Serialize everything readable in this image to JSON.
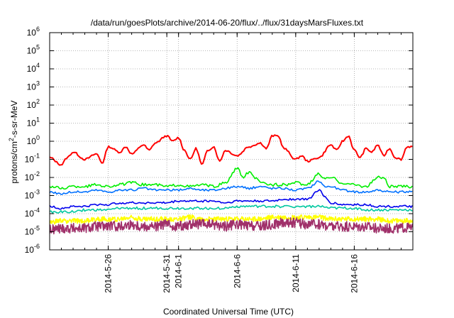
{
  "chart_data": {
    "type": "line",
    "title": "/data/run/goesPlots/archive/2014-06-20/flux/../flux/31daysMarsFluxes.txt",
    "xlabel": "Coordinated Universal Time (UTC)",
    "ylabel_parts": [
      "protons/cm",
      "2",
      "-s-sr-MeV"
    ],
    "y_scale": "log",
    "ylim_exp": [
      -6,
      6
    ],
    "y_tick_exponents": [
      -6,
      -5,
      -4,
      -3,
      -2,
      -1,
      0,
      1,
      2,
      3,
      4,
      5,
      6
    ],
    "y_tick_base": "10",
    "x_range": [
      "2014-05-21",
      "2014-06-21"
    ],
    "x_ticks": [
      "2014-5-26",
      "2014-5-31",
      "2014-6-1",
      "2014-6-6",
      "2014-6-11",
      "2014-6-16"
    ],
    "grid": true,
    "series": [
      {
        "color": "#ff0000",
        "exp": [
          [
            0,
            -0.9
          ],
          [
            1,
            -1.3
          ],
          [
            1.5,
            -0.9
          ],
          [
            2,
            -0.6
          ],
          [
            3,
            -1.0
          ],
          [
            4,
            -0.7
          ],
          [
            4.5,
            -1.2
          ],
          [
            5,
            -0.3
          ],
          [
            6,
            -0.6
          ],
          [
            6.5,
            -0.3
          ],
          [
            7,
            -0.7
          ],
          [
            8,
            -0.2
          ],
          [
            8.5,
            -0.5
          ],
          [
            9,
            -0.1
          ],
          [
            10,
            0.3
          ],
          [
            10.5,
            0.0
          ],
          [
            11,
            0.2
          ],
          [
            11.5,
            -0.5
          ],
          [
            12,
            -1.0
          ],
          [
            12.5,
            -0.4
          ],
          [
            13,
            -1.3
          ],
          [
            13.5,
            -0.5
          ],
          [
            14,
            -0.3
          ],
          [
            14.5,
            -1.1
          ],
          [
            15,
            -0.5
          ],
          [
            16,
            -0.8
          ],
          [
            17,
            -0.3
          ],
          [
            18,
            -0.1
          ],
          [
            18.5,
            -0.4
          ],
          [
            19,
            0.3
          ],
          [
            19.5,
            0.3
          ],
          [
            20,
            -0.4
          ],
          [
            21,
            -1.0
          ],
          [
            21.5,
            -0.8
          ],
          [
            22,
            -1.1
          ],
          [
            23,
            -0.9
          ],
          [
            24,
            -0.2
          ],
          [
            24.5,
            -0.5
          ],
          [
            25,
            0.0
          ],
          [
            25.5,
            0.3
          ],
          [
            26,
            -0.5
          ],
          [
            26.5,
            -0.9
          ],
          [
            27,
            -0.4
          ],
          [
            27.5,
            -0.6
          ],
          [
            28,
            -0.2
          ],
          [
            28.5,
            -0.8
          ],
          [
            29,
            -0.4
          ],
          [
            29.5,
            -0.9
          ],
          [
            30,
            -1.0
          ],
          [
            30.5,
            -0.3
          ]
        ]
      },
      {
        "color": "#00ee00",
        "exp": [
          [
            0,
            -2.5
          ],
          [
            1,
            -2.6
          ],
          [
            2,
            -2.5
          ],
          [
            3,
            -2.5
          ],
          [
            4,
            -2.4
          ],
          [
            5,
            -2.5
          ],
          [
            6,
            -2.4
          ],
          [
            7,
            -2.3
          ],
          [
            8,
            -2.4
          ],
          [
            9,
            -2.4
          ],
          [
            10,
            -2.5
          ],
          [
            11,
            -2.4
          ],
          [
            12,
            -2.5
          ],
          [
            13,
            -2.4
          ],
          [
            14,
            -2.5
          ],
          [
            15,
            -2.3
          ],
          [
            16,
            -1.5
          ],
          [
            16.5,
            -2.0
          ],
          [
            17,
            -1.7
          ],
          [
            17.5,
            -2.0
          ],
          [
            18,
            -2.3
          ],
          [
            19,
            -2.4
          ],
          [
            20,
            -2.4
          ],
          [
            21,
            -2.3
          ],
          [
            22,
            -2.4
          ],
          [
            23,
            -1.8
          ],
          [
            23.5,
            -2.1
          ],
          [
            24,
            -2.0
          ],
          [
            25,
            -2.3
          ],
          [
            26,
            -2.4
          ],
          [
            27,
            -2.5
          ],
          [
            28,
            -2.0
          ],
          [
            28.5,
            -2.0
          ],
          [
            29,
            -2.5
          ],
          [
            30,
            -2.5
          ],
          [
            30.5,
            -2.5
          ]
        ]
      },
      {
        "color": "#0070ff",
        "exp": [
          [
            0,
            -2.8
          ],
          [
            1,
            -2.9
          ],
          [
            2,
            -2.8
          ],
          [
            3,
            -2.8
          ],
          [
            4,
            -2.7
          ],
          [
            5,
            -2.8
          ],
          [
            6,
            -2.7
          ],
          [
            7,
            -2.7
          ],
          [
            8,
            -2.6
          ],
          [
            9,
            -2.7
          ],
          [
            10,
            -2.7
          ],
          [
            11,
            -2.7
          ],
          [
            12,
            -2.6
          ],
          [
            13,
            -2.7
          ],
          [
            14,
            -2.7
          ],
          [
            15,
            -2.6
          ],
          [
            16,
            -2.5
          ],
          [
            17,
            -2.6
          ],
          [
            18,
            -2.5
          ],
          [
            19,
            -2.6
          ],
          [
            20,
            -2.6
          ],
          [
            21,
            -2.7
          ],
          [
            22,
            -2.6
          ],
          [
            23,
            -2.2
          ],
          [
            23.5,
            -2.5
          ],
          [
            24,
            -2.5
          ],
          [
            25,
            -2.7
          ],
          [
            26,
            -2.8
          ],
          [
            27,
            -2.8
          ],
          [
            28,
            -2.7
          ],
          [
            29,
            -2.8
          ],
          [
            30,
            -2.8
          ],
          [
            30.5,
            -2.8
          ]
        ]
      },
      {
        "color": "#0000ee",
        "exp": [
          [
            0,
            -3.6
          ],
          [
            1,
            -3.7
          ],
          [
            2,
            -3.6
          ],
          [
            3,
            -3.6
          ],
          [
            4,
            -3.5
          ],
          [
            5,
            -3.5
          ],
          [
            6,
            -3.4
          ],
          [
            7,
            -3.4
          ],
          [
            8,
            -3.4
          ],
          [
            9,
            -3.4
          ],
          [
            10,
            -3.4
          ],
          [
            11,
            -3.3
          ],
          [
            12,
            -3.3
          ],
          [
            13,
            -3.3
          ],
          [
            14,
            -3.3
          ],
          [
            15,
            -3.4
          ],
          [
            16,
            -3.3
          ],
          [
            17,
            -3.3
          ],
          [
            18,
            -3.3
          ],
          [
            19,
            -3.3
          ],
          [
            20,
            -3.2
          ],
          [
            21,
            -3.2
          ],
          [
            22,
            -3.2
          ],
          [
            23,
            -2.7
          ],
          [
            23.5,
            -3.1
          ],
          [
            24,
            -3.4
          ],
          [
            25,
            -3.5
          ],
          [
            26,
            -3.5
          ],
          [
            27,
            -3.5
          ],
          [
            28,
            -3.6
          ],
          [
            29,
            -3.6
          ],
          [
            30,
            -3.6
          ],
          [
            30.5,
            -3.6
          ]
        ]
      },
      {
        "color": "#00c8a0",
        "exp": [
          [
            0,
            -3.9
          ],
          [
            1,
            -3.9
          ],
          [
            2,
            -3.9
          ],
          [
            3,
            -3.8
          ],
          [
            4,
            -3.8
          ],
          [
            5,
            -3.8
          ],
          [
            6,
            -3.7
          ],
          [
            7,
            -3.7
          ],
          [
            8,
            -3.7
          ],
          [
            9,
            -3.7
          ],
          [
            10,
            -3.7
          ],
          [
            11,
            -3.7
          ],
          [
            12,
            -3.7
          ],
          [
            13,
            -3.7
          ],
          [
            14,
            -3.7
          ],
          [
            15,
            -3.7
          ],
          [
            16,
            -3.6
          ],
          [
            17,
            -3.6
          ],
          [
            18,
            -3.6
          ],
          [
            19,
            -3.6
          ],
          [
            20,
            -3.6
          ],
          [
            21,
            -3.6
          ],
          [
            22,
            -3.6
          ],
          [
            23,
            -3.6
          ],
          [
            24,
            -3.7
          ],
          [
            25,
            -3.7
          ],
          [
            26,
            -3.7
          ],
          [
            27,
            -3.8
          ],
          [
            28,
            -3.8
          ],
          [
            29,
            -3.8
          ],
          [
            30,
            -3.8
          ],
          [
            30.5,
            -3.8
          ]
        ]
      },
      {
        "color": "#ffff00",
        "exp": [
          [
            0,
            -4.5
          ],
          [
            1,
            -4.4
          ],
          [
            2,
            -4.4
          ],
          [
            3,
            -4.4
          ],
          [
            4,
            -4.3
          ],
          [
            5,
            -4.3
          ],
          [
            6,
            -4.3
          ],
          [
            7,
            -4.2
          ],
          [
            8,
            -4.3
          ],
          [
            9,
            -4.3
          ],
          [
            10,
            -4.3
          ],
          [
            11,
            -4.3
          ],
          [
            12,
            -4.2
          ],
          [
            13,
            -4.3
          ],
          [
            14,
            -4.3
          ],
          [
            15,
            -4.3
          ],
          [
            16,
            -4.3
          ],
          [
            17,
            -4.3
          ],
          [
            18,
            -4.3
          ],
          [
            19,
            -4.2
          ],
          [
            20,
            -4.2
          ],
          [
            21,
            -4.2
          ],
          [
            22,
            -4.2
          ],
          [
            23,
            -4.2
          ],
          [
            24,
            -4.3
          ],
          [
            25,
            -4.3
          ],
          [
            26,
            -4.3
          ],
          [
            27,
            -4.3
          ],
          [
            28,
            -4.3
          ],
          [
            29,
            -4.4
          ],
          [
            30,
            -4.4
          ],
          [
            30.5,
            -4.4
          ]
        ]
      },
      {
        "color": "#a0306a",
        "exp": [
          [
            0,
            -4.9
          ],
          [
            1,
            -4.8
          ],
          [
            2,
            -4.8
          ],
          [
            3,
            -4.8
          ],
          [
            4,
            -4.7
          ],
          [
            5,
            -4.7
          ],
          [
            6,
            -4.7
          ],
          [
            7,
            -4.6
          ],
          [
            8,
            -4.7
          ],
          [
            9,
            -4.7
          ],
          [
            10,
            -4.6
          ],
          [
            11,
            -4.7
          ],
          [
            12,
            -4.6
          ],
          [
            13,
            -4.6
          ],
          [
            14,
            -4.6
          ],
          [
            15,
            -4.7
          ],
          [
            16,
            -4.6
          ],
          [
            17,
            -4.7
          ],
          [
            18,
            -4.7
          ],
          [
            19,
            -4.6
          ],
          [
            20,
            -4.5
          ],
          [
            21,
            -4.5
          ],
          [
            22,
            -4.6
          ],
          [
            23,
            -4.6
          ],
          [
            24,
            -4.7
          ],
          [
            25,
            -4.7
          ],
          [
            26,
            -4.7
          ],
          [
            27,
            -4.7
          ],
          [
            28,
            -4.8
          ],
          [
            29,
            -4.8
          ],
          [
            30,
            -4.8
          ],
          [
            30.5,
            -4.8
          ]
        ]
      }
    ]
  }
}
